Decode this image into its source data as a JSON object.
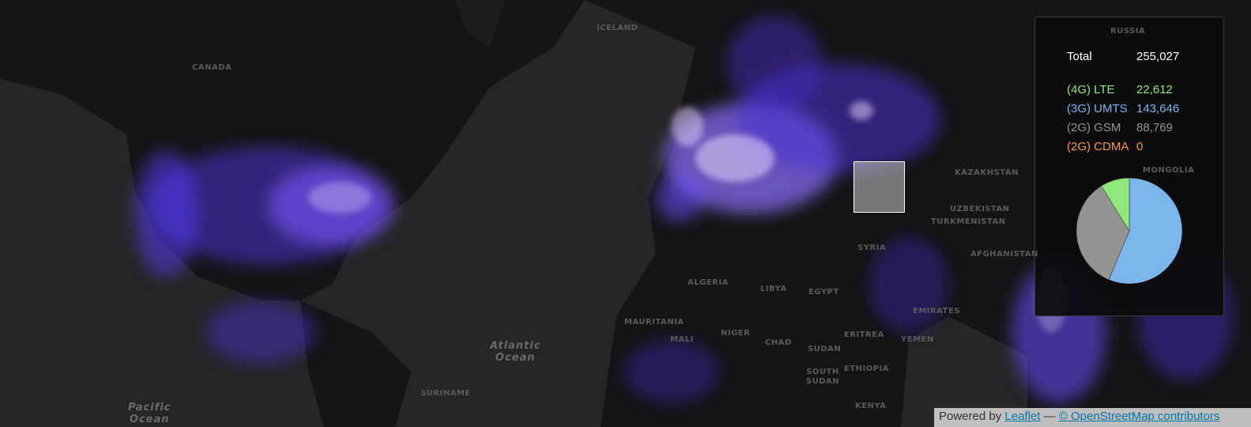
{
  "map": {
    "labels": {
      "canada": "CANADA",
      "iceland": "ICELAND",
      "russia": "RUSSIA",
      "kazakhstan": "KAZAKHSTAN",
      "uzbekistan": "UZBEKISTAN",
      "turkmenistan": "TURKMENISTAN",
      "mongolia": "MONGOLIA",
      "algeria": "ALGERIA",
      "libya": "LIBYA",
      "egypt": "EGYPT",
      "mauritania": "MAURITANIA",
      "mali": "MALI",
      "niger": "NIGER",
      "chad": "CHAD",
      "sudan": "SUDAN",
      "eritrea": "ERITREA",
      "yemen": "YEMEN",
      "ethiopia": "ETHIOPIA",
      "south_sudan": "SOUTH SUDAN",
      "kenya": "KENYA",
      "suriname": "SURINAME",
      "syria": "SYRIA",
      "emirates": "EMIRATES",
      "afghanistan": "AFGHANISTAN",
      "atlantic_1": "Atlantic",
      "atlantic_2": "Ocean",
      "pacific_1": "Pacific",
      "pacific_2": "Ocean"
    },
    "colors": {
      "background": "#262626",
      "land": "#141414",
      "glow": "#5a3cff",
      "core": "#e8d8ff"
    }
  },
  "stats": {
    "total_label": "Total",
    "total_value": "255,027",
    "items": [
      {
        "label": "(4G) LTE",
        "value": "22,612",
        "count": 22612,
        "color": "#90e87a"
      },
      {
        "label": "(3G) UMTS",
        "value": "143,646",
        "count": 143646,
        "color": "#7cb5ec"
      },
      {
        "label": "(2G) GSM",
        "value": "88,769",
        "count": 88769,
        "color": "#949494"
      },
      {
        "label": "(2G) CDMA",
        "value": "0",
        "count": 0,
        "color": "#f39a4a"
      }
    ],
    "pie_order": [
      1,
      2,
      0,
      3
    ]
  },
  "attribution": {
    "prefix": "Powered by",
    "leaflet": "Leaflet",
    "sep": "—",
    "osm": "© OpenStreetMap contributors"
  }
}
